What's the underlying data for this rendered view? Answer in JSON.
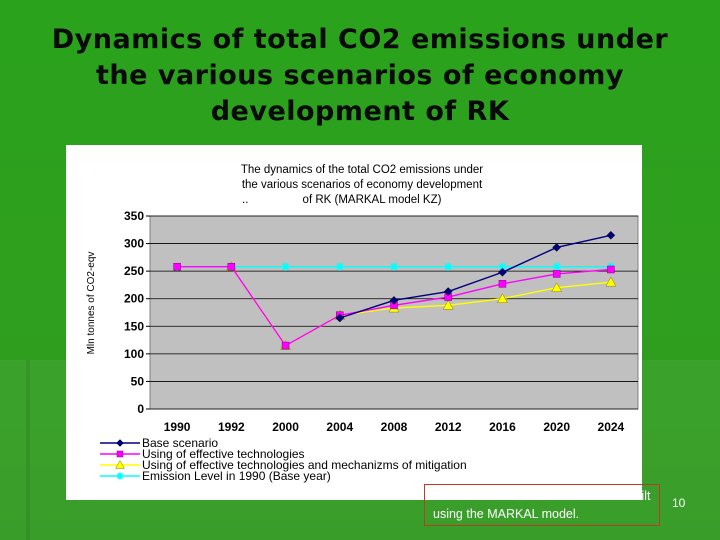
{
  "slide": {
    "title_lines": [
      "Dynamics of total CO2 emissions under",
      "the various scenarios of economy",
      "development of RK"
    ],
    "note": "The CO2 emission scenarios were built using the MARKAL model.",
    "page_number": "10"
  },
  "colors": {
    "background": "#2aa21c",
    "plot_area": "#c0c0c0",
    "series_base": "#000080",
    "series_eff_tech": "#ff00ff",
    "series_mitigation": "#ffff00",
    "series_emission_level": "#00ffff",
    "note_border": "#c0392b"
  },
  "chart_data": {
    "type": "line",
    "title_lines": [
      "The dynamics of the total CO2 emissions under",
      "the various scenarios of economy development",
      "of RK (MARKAL model KZ)"
    ],
    "title_prefix": "..",
    "xlabel": "",
    "ylabel": "Mln tonnes of CO2-eqv",
    "ylim": [
      0,
      350
    ],
    "yticks": [
      0,
      50,
      100,
      150,
      200,
      250,
      300,
      350
    ],
    "categories": [
      "1990",
      "1992",
      "2000",
      "2004",
      "2008",
      "2012",
      "2016",
      "2020",
      "2024"
    ],
    "grid": true,
    "legend_position": "bottom",
    "series": [
      {
        "name": "Base scenario",
        "marker": "diamond",
        "color": "#000080",
        "values": [
          null,
          null,
          null,
          165,
          197,
          213,
          248,
          293,
          315
        ]
      },
      {
        "name": "Using of effective technologies",
        "marker": "square",
        "color": "#ff00ff",
        "values": [
          258,
          258,
          115,
          170,
          188,
          203,
          227,
          245,
          253
        ]
      },
      {
        "name": "Using of effective technologies and mechanizms of mitigation",
        "marker": "triangle",
        "color": "#ffff00",
        "values": [
          null,
          258,
          115,
          170,
          183,
          188,
          200,
          220,
          230
        ]
      },
      {
        "name": "Emission Level in 1990 (Base year)",
        "marker": "star",
        "color": "#00ffff",
        "values": [
          258,
          258,
          258,
          258,
          258,
          258,
          258,
          258,
          258
        ]
      }
    ]
  }
}
